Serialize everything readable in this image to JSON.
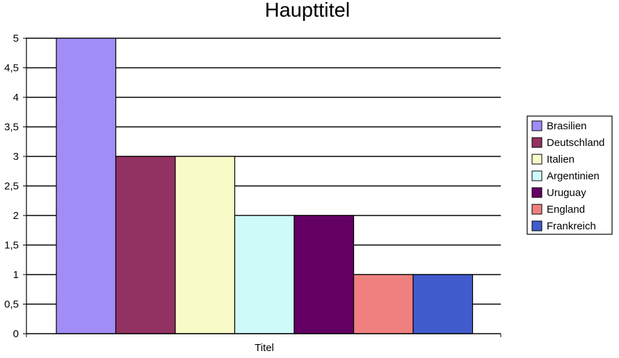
{
  "chart_data": {
    "type": "bar",
    "title": "Haupttitel",
    "categories": [
      "Titel"
    ],
    "xlabel": "",
    "ylabel": "",
    "ylim": [
      0,
      5
    ],
    "y_ticks": [
      "0",
      "0,5",
      "1",
      "1,5",
      "2",
      "2,5",
      "3",
      "3,5",
      "4",
      "4,5",
      "5"
    ],
    "grid": true,
    "legend_position": "right",
    "series": [
      {
        "name": "Brasilien",
        "values": [
          5
        ],
        "color": "#a28cf6"
      },
      {
        "name": "Deutschland",
        "values": [
          3
        ],
        "color": "#923262"
      },
      {
        "name": "Italien",
        "values": [
          3
        ],
        "color": "#f8fac8"
      },
      {
        "name": "Argentinien",
        "values": [
          2
        ],
        "color": "#cefbfa"
      },
      {
        "name": "Uruguay",
        "values": [
          2
        ],
        "color": "#640064"
      },
      {
        "name": "England",
        "values": [
          1
        ],
        "color": "#f08080"
      },
      {
        "name": "Frankreich",
        "values": [
          1
        ],
        "color": "#415ccc"
      }
    ]
  }
}
